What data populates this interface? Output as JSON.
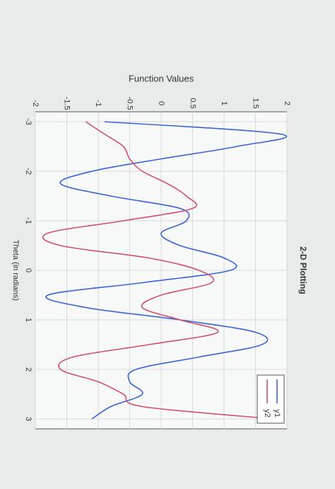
{
  "chart_data": {
    "type": "line",
    "title": "2-D Plotting",
    "xlabel": "Theta (in radians)",
    "ylabel": "Function Values",
    "x": [
      -3,
      -2.75,
      -2.5,
      -2.25,
      -2,
      -1.75,
      -1.5,
      -1.25,
      -1,
      -0.75,
      -0.5,
      -0.25,
      0,
      0.25,
      0.5,
      0.75,
      1,
      1.25,
      1.5,
      1.75,
      2,
      2.25,
      2.5,
      2.75,
      3
    ],
    "series": [
      {
        "name": "y1",
        "color": "#3a63d8",
        "values": [
          -0.9,
          1.9,
          1.2,
          0,
          -1.1,
          -1.6,
          -0.8,
          0.3,
          0.4,
          0,
          0.3,
          1,
          1.1,
          -0.3,
          -1.8,
          -1.2,
          0.3,
          1.5,
          1.6,
          0.6,
          -0.4,
          -0.5,
          -0.3,
          -0.8,
          -1.1
        ]
      },
      {
        "name": "y2",
        "color": "#d0506e",
        "values": [
          -1.2,
          -0.9,
          -0.6,
          -0.5,
          -0.3,
          0.1,
          0.4,
          0.5,
          -0.6,
          -1.8,
          -1.6,
          -0.2,
          0.6,
          0.8,
          0,
          -0.3,
          0.3,
          0.9,
          -0.2,
          -1.4,
          -1.6,
          -1,
          -0.6,
          -0.3,
          1.8
        ]
      }
    ],
    "xlim": [
      -3.2,
      3.2
    ],
    "xticks": [
      -3,
      -2,
      -1,
      0,
      1,
      2,
      3
    ],
    "ylim": [
      -2,
      2
    ],
    "yticks": [
      -2,
      -1.5,
      -1,
      -0.5,
      0,
      0.5,
      1,
      1.5,
      2
    ],
    "grid": true,
    "legend": "northeast"
  }
}
